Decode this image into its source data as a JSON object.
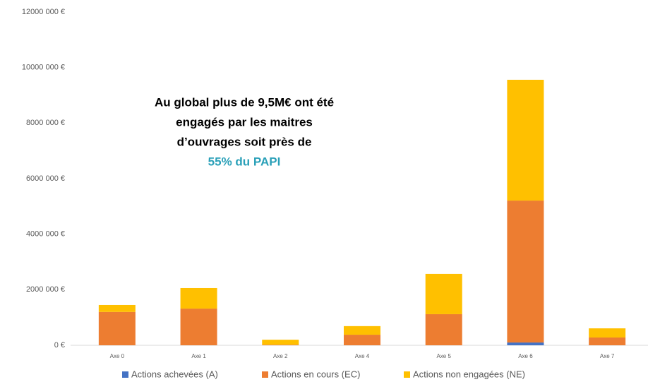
{
  "chart_data": {
    "type": "stacked_bar",
    "annotation": [
      "Au global plus de 9,5M€ ont été",
      "engagés par les maitres",
      "d’ouvrages soit près de",
      "55% du PAPI"
    ],
    "categories": [
      "Axe 0",
      "Axe 1",
      "Axe 2",
      "Axe 4",
      "Axe 5",
      "Axe 6",
      "Axe 7"
    ],
    "series": [
      {
        "name": "Actions achevées (A)",
        "color": "#4472c4",
        "values": [
          0,
          0,
          0,
          0,
          0,
          100000,
          0
        ]
      },
      {
        "name": "Actions en cours (EC)",
        "color": "#ed7d31",
        "values": [
          1200000,
          1320000,
          20000,
          380000,
          1120000,
          5110000,
          280000
        ]
      },
      {
        "name": "Actions non engagées (NE)",
        "color": "#ffc000",
        "values": [
          250000,
          740000,
          180000,
          310000,
          1450000,
          4350000,
          330000
        ]
      }
    ],
    "ylim": [
      0,
      12000000
    ],
    "yticks": [
      {
        "value": 0,
        "label": "0 €"
      },
      {
        "value": 2000000,
        "label": "2000 000 €"
      },
      {
        "value": 4000000,
        "label": "4000 000 €"
      },
      {
        "value": 6000000,
        "label": "6000 000 €"
      },
      {
        "value": 8000000,
        "label": "8000 000 €"
      },
      {
        "value": 10000000,
        "label": "10000 000 €"
      },
      {
        "value": 12000000,
        "label": "12000 000 €"
      }
    ],
    "grid": false,
    "legend": "bottom"
  }
}
